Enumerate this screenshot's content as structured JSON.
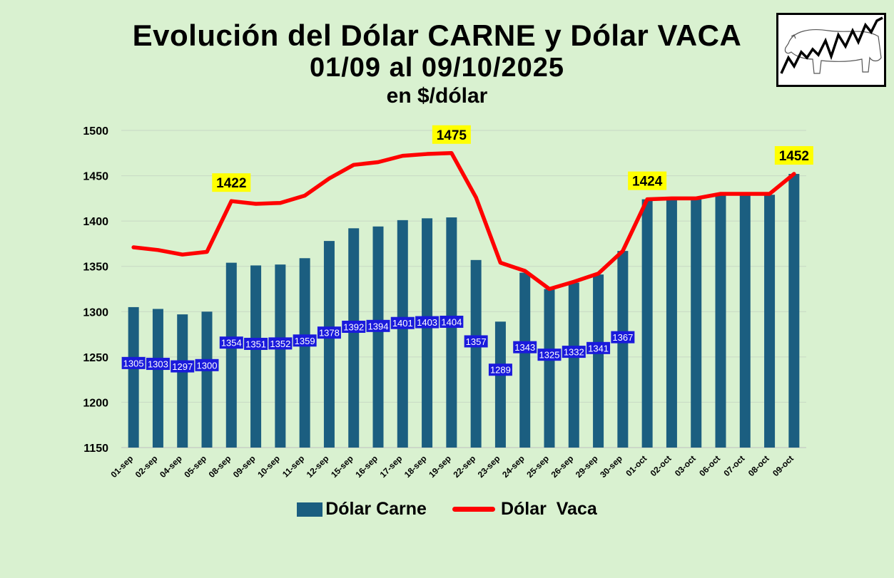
{
  "title": {
    "line1": "Evolución del Dólar CARNE y Dólar VACA",
    "line2": "01/09 al 09/10/2025",
    "line3": "en $/dólar"
  },
  "colors": {
    "background": "#d9f1d0",
    "carne_bar": "#1b5e80",
    "vaca_line": "#ff0000",
    "label_box": "#1a1adc",
    "highlight_box": "#ffff00"
  },
  "legend": {
    "carne": "Dólar Carne",
    "vaca": "Dólar  Vaca"
  },
  "chart_data": {
    "type": "bar",
    "categories": [
      "01-sep",
      "02-sep",
      "04-sep",
      "05-sep",
      "08-sep",
      "09-sep",
      "10-sep",
      "11-sep",
      "12-sep",
      "15-sep",
      "16-sep",
      "17-sep",
      "18-sep",
      "19-sep",
      "22-sep",
      "23-sep",
      "24-sep",
      "25-sep",
      "26-sep",
      "29-sep",
      "30-sep",
      "01-oct",
      "02-oct",
      "03-oct",
      "06-oct",
      "07-oct",
      "08-oct",
      "09-oct"
    ],
    "series": [
      {
        "name": "Dólar Carne",
        "kind": "bar",
        "values": [
          1305,
          1303,
          1297,
          1300,
          1354,
          1351,
          1352,
          1359,
          1378,
          1392,
          1394,
          1401,
          1403,
          1404,
          1357,
          1289,
          1343,
          1325,
          1332,
          1341,
          1367,
          1424,
          1424,
          1424,
          1429,
          1429,
          1429,
          1452
        ],
        "labels": [
          "1305",
          "1303",
          "1297",
          "1300",
          "1354",
          "1351",
          "1352",
          "1359",
          "1378",
          "1392",
          "1394",
          "1401",
          "1403",
          "1404",
          "1357",
          "1289",
          "1343",
          "1325",
          "1332",
          "1341",
          "1367",
          "",
          "",
          "",
          "",
          "",
          "",
          ""
        ]
      },
      {
        "name": "Dólar  Vaca",
        "kind": "line",
        "values": [
          1371,
          1368,
          1363,
          1366,
          1422,
          1419,
          1420,
          1428,
          1447,
          1462,
          1465,
          1472,
          1474,
          1475,
          1426,
          1354,
          1345,
          1325,
          1333,
          1342,
          1367,
          1424,
          1425,
          1425,
          1430,
          1430,
          1430,
          1452
        ],
        "highlight_labels": {
          "4": "1422",
          "13": "1475",
          "21": "1424",
          "27": "1452"
        }
      }
    ],
    "yticks": [
      "1150",
      "1200",
      "1250",
      "1300",
      "1350",
      "1400",
      "1450",
      "1500"
    ],
    "ylim": [
      1150,
      1500
    ],
    "grid": true,
    "legend_position": "bottom"
  }
}
